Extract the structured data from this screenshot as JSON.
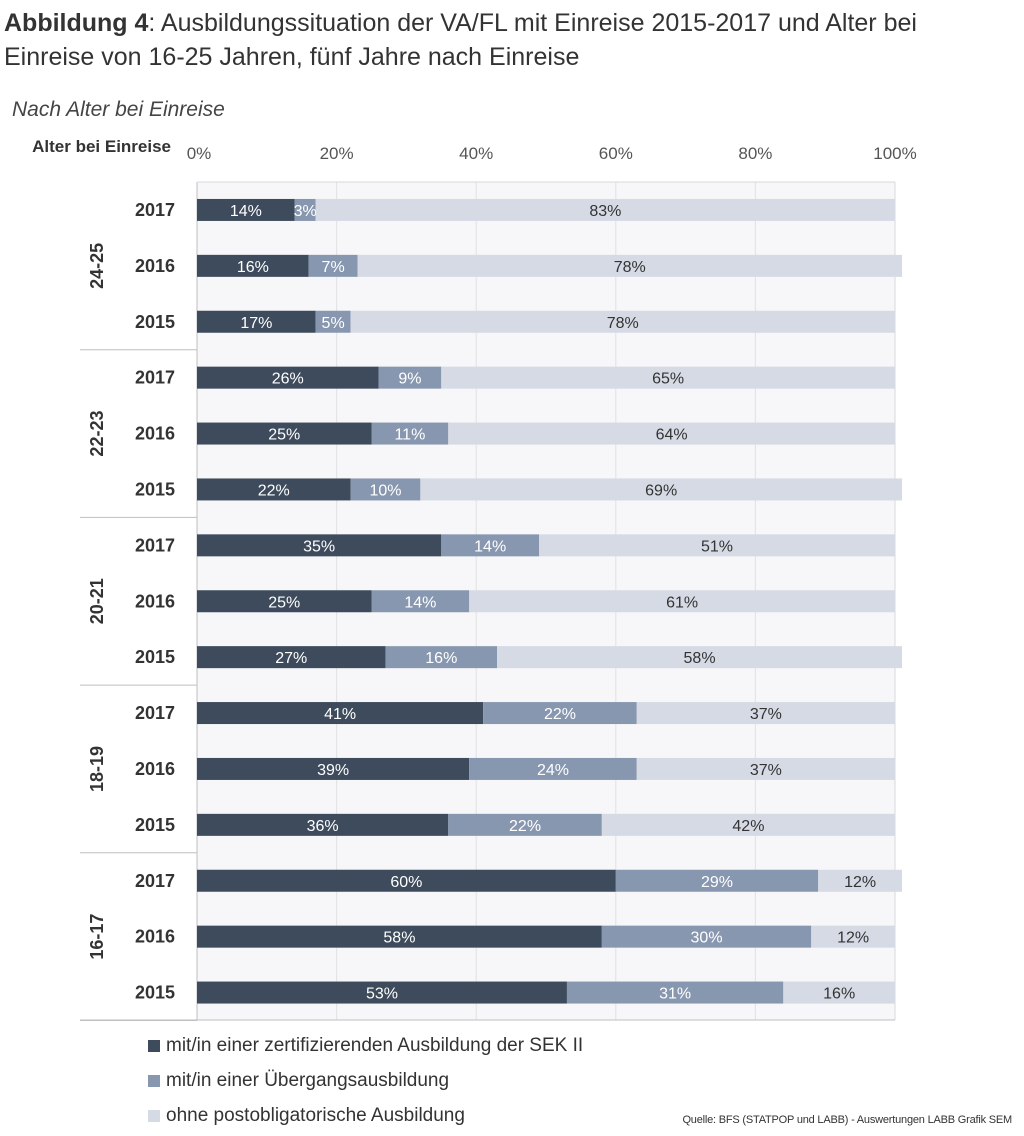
{
  "title_prefix": "Abbildung 4",
  "title_rest": ": Ausbildungssituation der VA/FL mit Einreise 2015-2017 und Alter bei Einreise von 16-25 Jahren, fünf Jahre nach Einreise",
  "subtitle": "Nach Alter bei Einreise",
  "source": "Quelle: BFS (STATPOP und LABB) - Auswertungen LABB Grafik SEM",
  "chart_data": {
    "type": "bar",
    "orientation": "horizontal",
    "stacked": true,
    "ylabel": "Alter bei Einreise",
    "xlim": [
      0,
      100
    ],
    "x_ticks": [
      "0%",
      "20%",
      "40%",
      "60%",
      "80%",
      "100%"
    ],
    "grid": true,
    "legend_position": "bottom",
    "colors": [
      "#3d4b5c",
      "#8897b0",
      "#d5dae5"
    ],
    "series": [
      {
        "name": "mit/in einer zertifizierenden Ausbildung der SEK II"
      },
      {
        "name": "mit/in einer Übergangsausbildung"
      },
      {
        "name": "ohne postobligatorische Ausbildung"
      }
    ],
    "groups": [
      {
        "name": "24-25",
        "rows": [
          {
            "year": "2017",
            "values": [
              14,
              3,
              83
            ]
          },
          {
            "year": "2016",
            "values": [
              16,
              7,
              78
            ]
          },
          {
            "year": "2015",
            "values": [
              17,
              5,
              78
            ]
          }
        ]
      },
      {
        "name": "22-23",
        "rows": [
          {
            "year": "2017",
            "values": [
              26,
              9,
              65
            ]
          },
          {
            "year": "2016",
            "values": [
              25,
              11,
              64
            ]
          },
          {
            "year": "2015",
            "values": [
              22,
              10,
              69
            ]
          }
        ]
      },
      {
        "name": "20-21",
        "rows": [
          {
            "year": "2017",
            "values": [
              35,
              14,
              51
            ]
          },
          {
            "year": "2016",
            "values": [
              25,
              14,
              61
            ]
          },
          {
            "year": "2015",
            "values": [
              27,
              16,
              58
            ]
          }
        ]
      },
      {
        "name": "18-19",
        "rows": [
          {
            "year": "2017",
            "values": [
              41,
              22,
              37
            ]
          },
          {
            "year": "2016",
            "values": [
              39,
              24,
              37
            ]
          },
          {
            "year": "2015",
            "values": [
              36,
              22,
              42
            ]
          }
        ]
      },
      {
        "name": "16-17",
        "rows": [
          {
            "year": "2017",
            "values": [
              60,
              29,
              12
            ]
          },
          {
            "year": "2016",
            "values": [
              58,
              30,
              12
            ]
          },
          {
            "year": "2015",
            "values": [
              53,
              31,
              16
            ]
          }
        ]
      }
    ]
  }
}
